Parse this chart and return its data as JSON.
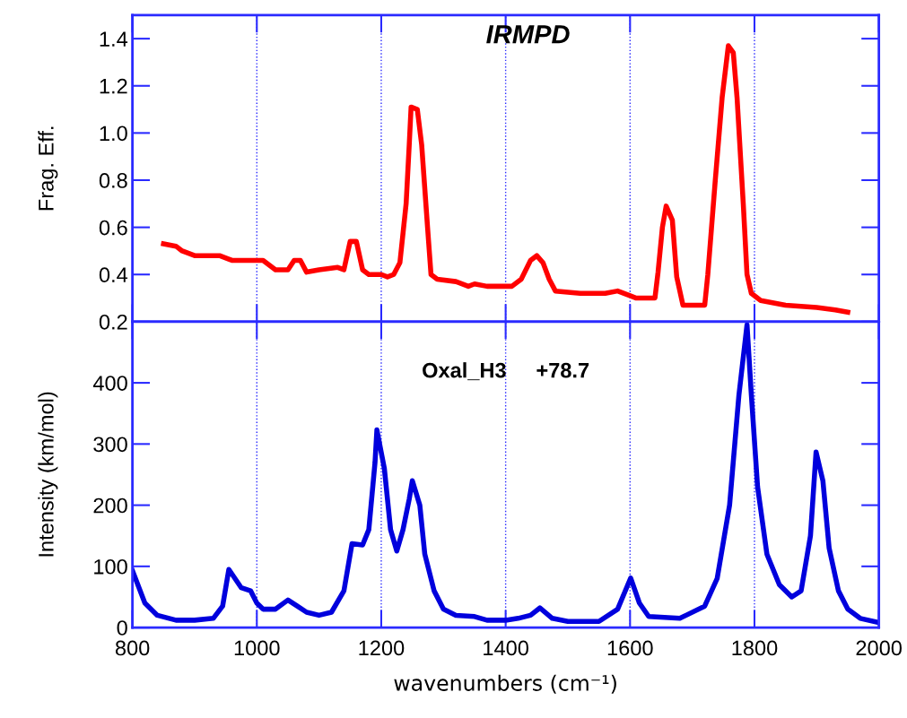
{
  "chart_data": [
    {
      "type": "line",
      "ylabel": "Frag. Eff.",
      "annotations": [
        "IRMPD"
      ],
      "xlim": [
        800,
        2000
      ],
      "xticks": [
        800,
        1000,
        1200,
        1400,
        1600,
        1800,
        2000
      ],
      "ylim": [
        0.2,
        1.5
      ],
      "yticks": [
        0.2,
        0.4,
        0.6,
        0.8,
        {
          "value": 1.0,
          "label": "1.0"
        },
        1.2,
        1.4
      ],
      "grid": "x",
      "tick_labels": "y",
      "series": [
        {
          "color": "#ff0000",
          "x": [
            850,
            870,
            880,
            900,
            920,
            940,
            960,
            1000,
            1010,
            1030,
            1050,
            1060,
            1070,
            1080,
            1100,
            1130,
            1140,
            1150,
            1160,
            1170,
            1180,
            1200,
            1210,
            1220,
            1230,
            1240,
            1245,
            1248,
            1258,
            1265,
            1275,
            1280,
            1290,
            1320,
            1340,
            1350,
            1370,
            1400,
            1410,
            1425,
            1440,
            1450,
            1460,
            1470,
            1480,
            1520,
            1560,
            1580,
            1600,
            1610,
            1640,
            1645,
            1652,
            1658,
            1668,
            1675,
            1685,
            1720,
            1725,
            1737,
            1748,
            1758,
            1766,
            1772,
            1782,
            1788,
            1795,
            1810,
            1850,
            1900,
            1930,
            1950
          ],
          "values": [
            0.53,
            0.52,
            0.5,
            0.48,
            0.48,
            0.48,
            0.46,
            0.46,
            0.46,
            0.42,
            0.42,
            0.46,
            0.46,
            0.41,
            0.42,
            0.43,
            0.42,
            0.54,
            0.54,
            0.42,
            0.4,
            0.4,
            0.39,
            0.4,
            0.45,
            0.7,
            0.95,
            1.11,
            1.1,
            0.95,
            0.58,
            0.4,
            0.38,
            0.37,
            0.35,
            0.36,
            0.35,
            0.35,
            0.35,
            0.38,
            0.46,
            0.48,
            0.45,
            0.38,
            0.33,
            0.32,
            0.32,
            0.33,
            0.31,
            0.3,
            0.3,
            0.41,
            0.6,
            0.69,
            0.63,
            0.39,
            0.27,
            0.27,
            0.4,
            0.8,
            1.15,
            1.37,
            1.34,
            1.15,
            0.7,
            0.4,
            0.32,
            0.29,
            0.27,
            0.26,
            0.25,
            0.24
          ]
        }
      ]
    },
    {
      "type": "line",
      "xlabel": "wavenumbers (cm⁻¹)",
      "ylabel": "Intensity (km/mol)",
      "annotations": [
        "Oxal_H3     +78.7"
      ],
      "xlim": [
        800,
        2000
      ],
      "xticks": [
        800,
        1000,
        1200,
        1400,
        1600,
        1800,
        2000
      ],
      "ylim": [
        0,
        500
      ],
      "yticks": [
        0,
        100,
        200,
        300,
        400
      ],
      "grid": "x",
      "series": [
        {
          "color": "#0000dd",
          "x": [
            800,
            820,
            840,
            870,
            900,
            930,
            945,
            955,
            975,
            990,
            1000,
            1010,
            1030,
            1050,
            1065,
            1080,
            1100,
            1120,
            1140,
            1153,
            1170,
            1180,
            1190,
            1193,
            1205,
            1215,
            1225,
            1235,
            1245,
            1250,
            1262,
            1270,
            1285,
            1300,
            1320,
            1350,
            1370,
            1400,
            1420,
            1440,
            1455,
            1475,
            1500,
            1550,
            1580,
            1601,
            1615,
            1630,
            1680,
            1720,
            1740,
            1760,
            1775,
            1788,
            1795,
            1805,
            1820,
            1840,
            1860,
            1875,
            1890,
            1899,
            1910,
            1920,
            1935,
            1950,
            1970,
            2000
          ],
          "values": [
            93,
            40,
            20,
            12,
            12,
            15,
            35,
            95,
            65,
            60,
            40,
            30,
            30,
            45,
            35,
            25,
            20,
            25,
            60,
            137,
            135,
            160,
            270,
            323,
            260,
            160,
            125,
            160,
            210,
            240,
            200,
            120,
            60,
            30,
            20,
            18,
            12,
            12,
            15,
            20,
            32,
            15,
            10,
            10,
            30,
            81,
            40,
            18,
            15,
            35,
            80,
            200,
            380,
            495,
            380,
            230,
            120,
            70,
            50,
            60,
            150,
            287,
            240,
            130,
            60,
            30,
            15,
            8
          ]
        }
      ]
    }
  ]
}
